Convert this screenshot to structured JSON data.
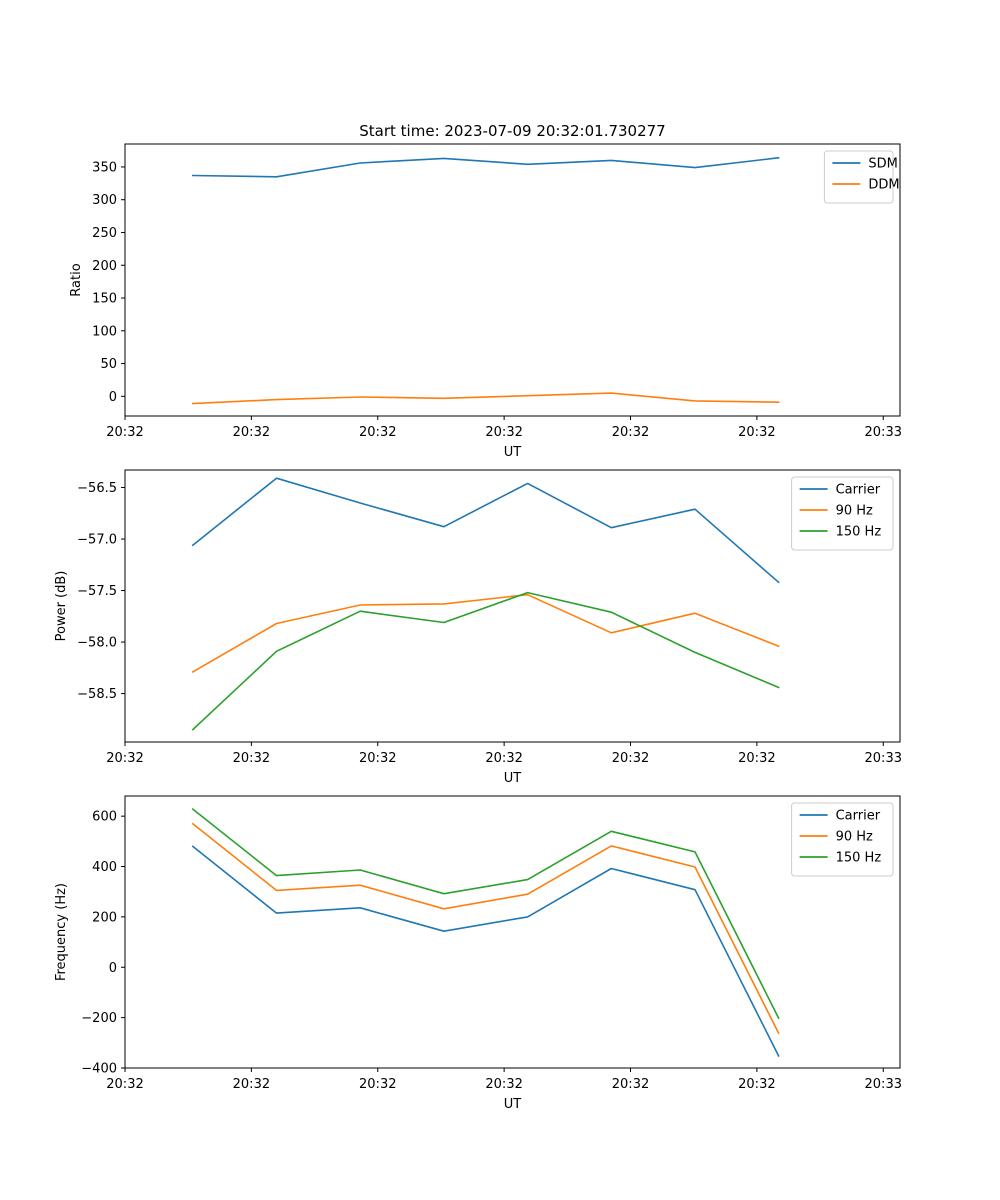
{
  "title": "Start time: 2023-07-09 20:32:01.730277",
  "colors": {
    "series_blue": "#1f77b4",
    "series_orange": "#ff7f0e",
    "series_green": "#2ca02c"
  },
  "chart_data": [
    {
      "type": "line",
      "title": "Start time: 2023-07-09 20:32:01.730277",
      "xlabel": "UT",
      "ylabel": "Ratio",
      "x": [
        1,
        2,
        3,
        4,
        5,
        6,
        7,
        8
      ],
      "xlim": [
        0.19,
        9.45
      ],
      "xticks": [
        0.19,
        1.7,
        3.21,
        4.72,
        6.23,
        7.74,
        9.25
      ],
      "xticklabels": [
        "20:32",
        "20:32",
        "20:32",
        "20:32",
        "20:32",
        "20:32",
        "20:33"
      ],
      "ylim": [
        -30,
        385
      ],
      "yticks": [
        0,
        50,
        100,
        150,
        200,
        250,
        300,
        350
      ],
      "yticklabels": [
        "0",
        "50",
        "100",
        "150",
        "200",
        "250",
        "300",
        "350"
      ],
      "legend_position": "top-right",
      "series": [
        {
          "name": "SDM",
          "color": "#1f77b4",
          "values": [
            337,
            335,
            356,
            363,
            354,
            360,
            349,
            364
          ]
        },
        {
          "name": "DDM",
          "color": "#ff7f0e",
          "values": [
            -11,
            -5,
            -1,
            -3,
            1,
            5,
            -7,
            -9
          ]
        }
      ]
    },
    {
      "type": "line",
      "title": "",
      "xlabel": "UT",
      "ylabel": "Power (dB)",
      "x": [
        1,
        2,
        3,
        4,
        5,
        6,
        7,
        8
      ],
      "xlim": [
        0.19,
        9.45
      ],
      "xticks": [
        0.19,
        1.7,
        3.21,
        4.72,
        6.23,
        7.74,
        9.25
      ],
      "xticklabels": [
        "20:32",
        "20:32",
        "20:32",
        "20:32",
        "20:32",
        "20:32",
        "20:33"
      ],
      "ylim": [
        -58.97,
        -56.33
      ],
      "yticks": [
        -58.5,
        -58.0,
        -57.5,
        -57.0,
        -56.5
      ],
      "yticklabels": [
        "−58.5",
        "−58.0",
        "−57.5",
        "−57.0",
        "−56.5"
      ],
      "legend_position": "top-right",
      "series": [
        {
          "name": "Carrier",
          "color": "#1f77b4",
          "values": [
            -57.06,
            -56.41,
            -56.65,
            -56.88,
            -56.46,
            -56.89,
            -56.71,
            -57.42
          ]
        },
        {
          "name": "90 Hz",
          "color": "#ff7f0e",
          "values": [
            -58.29,
            -57.82,
            -57.64,
            -57.63,
            -57.54,
            -57.91,
            -57.72,
            -58.04
          ]
        },
        {
          "name": "150 Hz",
          "color": "#2ca02c",
          "values": [
            -58.85,
            -58.09,
            -57.7,
            -57.81,
            -57.52,
            -57.71,
            -58.1,
            -58.44
          ]
        }
      ]
    },
    {
      "type": "line",
      "title": "",
      "xlabel": "UT",
      "ylabel": "Frequency (Hz)",
      "x": [
        1,
        2,
        3,
        4,
        5,
        6,
        7,
        8
      ],
      "xlim": [
        0.19,
        9.45
      ],
      "xticks": [
        0.19,
        1.7,
        3.21,
        4.72,
        6.23,
        7.74,
        9.25
      ],
      "xticklabels": [
        "20:32",
        "20:32",
        "20:32",
        "20:32",
        "20:32",
        "20:32",
        "20:33"
      ],
      "ylim": [
        -400,
        680
      ],
      "yticks": [
        -400,
        -200,
        0,
        200,
        400,
        600
      ],
      "yticklabels": [
        "−400",
        "−200",
        "0",
        "200",
        "400",
        "600"
      ],
      "legend_position": "top-right",
      "series": [
        {
          "name": "Carrier",
          "color": "#1f77b4",
          "values": [
            480,
            215,
            236,
            143,
            200,
            392,
            308,
            -352
          ]
        },
        {
          "name": "90 Hz",
          "color": "#ff7f0e",
          "values": [
            570,
            305,
            326,
            232,
            290,
            482,
            398,
            -262
          ]
        },
        {
          "name": "150 Hz",
          "color": "#2ca02c",
          "values": [
            628,
            364,
            386,
            292,
            348,
            540,
            458,
            -202
          ]
        }
      ]
    }
  ]
}
